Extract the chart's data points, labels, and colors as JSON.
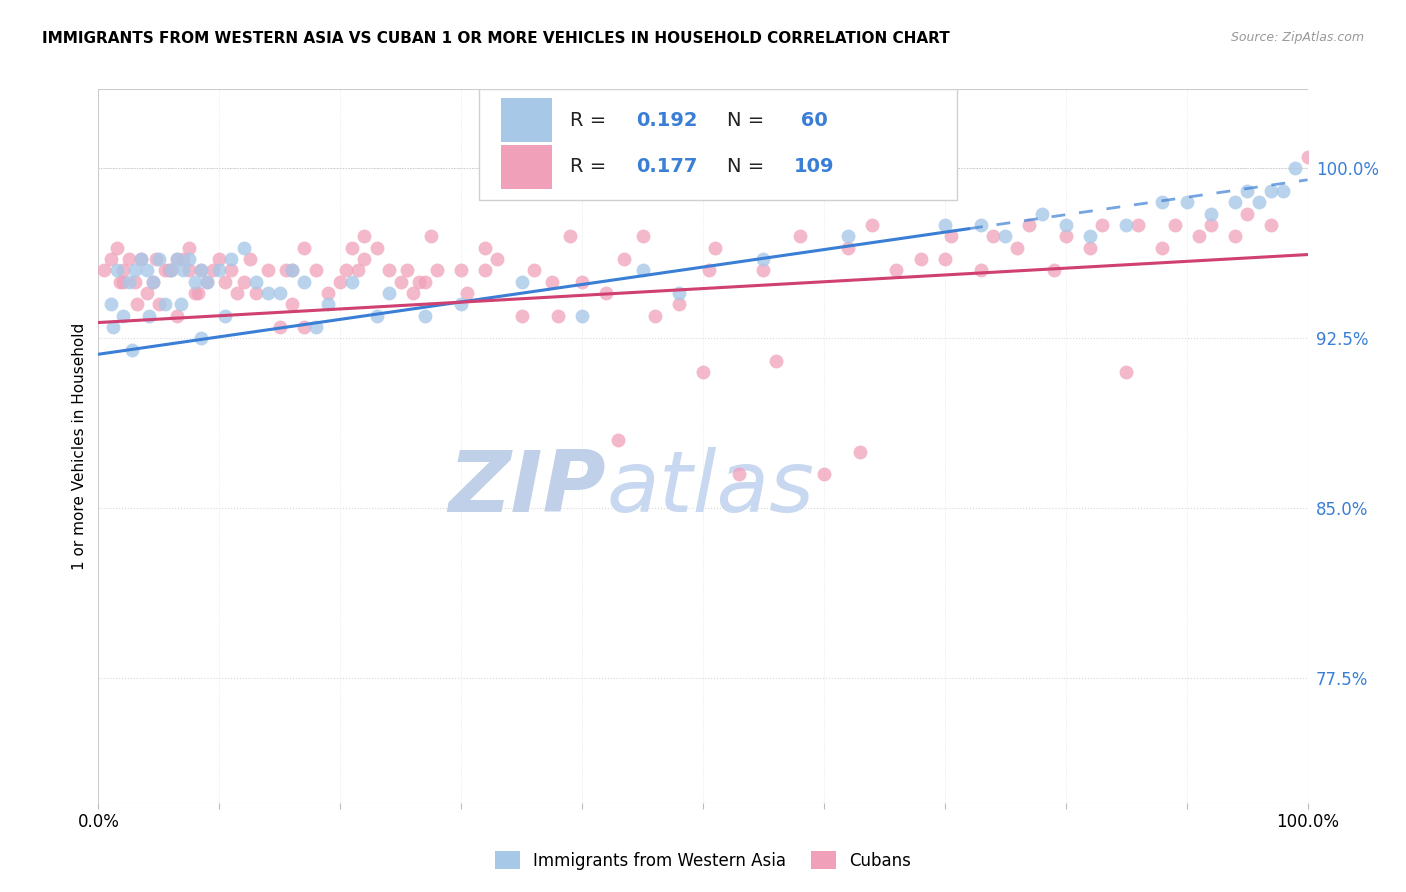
{
  "title": "IMMIGRANTS FROM WESTERN ASIA VS CUBAN 1 OR MORE VEHICLES IN HOUSEHOLD CORRELATION CHART",
  "source_text": "Source: ZipAtlas.com",
  "ylabel": "1 or more Vehicles in Household",
  "legend_label_blue": "Immigrants from Western Asia",
  "legend_label_pink": "Cubans",
  "R_blue": 0.192,
  "N_blue": 60,
  "R_pink": 0.177,
  "N_pink": 109,
  "color_blue_scatter": "#a8c8e8",
  "color_pink_scatter": "#f0a0b8",
  "color_blue_line": "#3a7fd5",
  "color_pink_line": "#d04070",
  "color_right_axis": "#3a7fd5",
  "watermark_zip_color": "#c0d0e8",
  "watermark_atlas_color": "#c8d8f0",
  "right_yticks": [
    77.5,
    85.0,
    92.5,
    100.0
  ],
  "right_yticklabels": [
    "77.5%",
    "85.0%",
    "92.5%",
    "100.0%"
  ],
  "xmin": 0.0,
  "xmax": 100.0,
  "ymin": 72.0,
  "ymax": 103.5,
  "blue_line_x0": 0.0,
  "blue_line_y0": 91.8,
  "blue_line_x1": 100.0,
  "blue_line_y1": 99.5,
  "blue_solid_end": 72.0,
  "pink_line_x0": 0.0,
  "pink_line_y0": 93.2,
  "pink_line_x1": 100.0,
  "pink_line_y1": 96.2,
  "blue_x": [
    1.0,
    1.5,
    2.0,
    2.5,
    3.0,
    3.5,
    4.0,
    4.5,
    5.0,
    5.5,
    6.0,
    6.5,
    7.0,
    7.5,
    8.0,
    8.5,
    9.0,
    10.0,
    11.0,
    12.0,
    13.0,
    15.0,
    16.0,
    17.0,
    19.0,
    21.0,
    24.0,
    27.0,
    30.0,
    35.0,
    40.0,
    48.0,
    55.0,
    62.0,
    70.0,
    73.0,
    75.0,
    78.0,
    80.0,
    82.0,
    85.0,
    88.0,
    90.0,
    92.0,
    94.0,
    95.0,
    96.0,
    97.0,
    98.0,
    99.0,
    1.2,
    2.8,
    4.2,
    6.8,
    8.5,
    10.5,
    14.0,
    18.0,
    23.0,
    45.0
  ],
  "blue_y": [
    94.0,
    95.5,
    93.5,
    95.0,
    95.5,
    96.0,
    95.5,
    95.0,
    96.0,
    94.0,
    95.5,
    96.0,
    95.5,
    96.0,
    95.0,
    95.5,
    95.0,
    95.5,
    96.0,
    96.5,
    95.0,
    94.5,
    95.5,
    95.0,
    94.0,
    95.0,
    94.5,
    93.5,
    94.0,
    95.0,
    93.5,
    94.5,
    96.0,
    97.0,
    97.5,
    97.5,
    97.0,
    98.0,
    97.5,
    97.0,
    97.5,
    98.5,
    98.5,
    98.0,
    98.5,
    99.0,
    98.5,
    99.0,
    99.0,
    100.0,
    93.0,
    92.0,
    93.5,
    94.0,
    92.5,
    93.5,
    94.5,
    93.0,
    93.5,
    95.5
  ],
  "pink_x": [
    0.5,
    1.0,
    1.5,
    2.0,
    2.5,
    3.0,
    3.5,
    4.0,
    4.5,
    5.0,
    5.5,
    6.0,
    6.5,
    7.0,
    7.5,
    8.0,
    8.5,
    9.0,
    9.5,
    10.0,
    11.0,
    12.0,
    13.0,
    14.0,
    15.0,
    16.0,
    17.0,
    18.0,
    19.0,
    20.0,
    21.0,
    22.0,
    23.0,
    24.0,
    25.0,
    26.0,
    27.0,
    28.0,
    30.0,
    32.0,
    35.0,
    38.0,
    40.0,
    43.0,
    46.0,
    50.0,
    53.0,
    56.0,
    60.0,
    63.0,
    66.0,
    70.0,
    73.0,
    76.0,
    79.0,
    82.0,
    85.0,
    88.0,
    91.0,
    94.0,
    97.0,
    100.0,
    1.8,
    3.2,
    5.8,
    8.2,
    11.5,
    15.5,
    20.5,
    25.5,
    30.5,
    36.0,
    42.0,
    48.0,
    55.0,
    62.0,
    68.0,
    74.0,
    80.0,
    86.0,
    92.0,
    4.8,
    7.5,
    12.5,
    17.0,
    22.0,
    27.5,
    33.0,
    39.0,
    45.0,
    51.0,
    58.0,
    64.0,
    70.5,
    77.0,
    83.0,
    89.0,
    95.0,
    2.0,
    6.5,
    10.5,
    16.0,
    21.5,
    26.5,
    32.0,
    37.5,
    43.5,
    50.5
  ],
  "pink_y": [
    95.5,
    96.0,
    96.5,
    95.5,
    96.0,
    95.0,
    96.0,
    94.5,
    95.0,
    94.0,
    95.5,
    95.5,
    96.0,
    96.0,
    95.5,
    94.5,
    95.5,
    95.0,
    95.5,
    96.0,
    95.5,
    95.0,
    94.5,
    95.5,
    93.0,
    95.5,
    93.0,
    95.5,
    94.5,
    95.0,
    96.5,
    96.0,
    96.5,
    95.5,
    95.0,
    94.5,
    95.0,
    95.5,
    95.5,
    96.5,
    93.5,
    93.5,
    95.0,
    88.0,
    93.5,
    91.0,
    86.5,
    91.5,
    86.5,
    87.5,
    95.5,
    96.0,
    95.5,
    96.5,
    95.5,
    96.5,
    91.0,
    96.5,
    97.0,
    97.0,
    97.5,
    100.5,
    95.0,
    94.0,
    95.5,
    94.5,
    94.5,
    95.5,
    95.5,
    95.5,
    94.5,
    95.5,
    94.5,
    94.0,
    95.5,
    96.5,
    96.0,
    97.0,
    97.0,
    97.5,
    97.5,
    96.0,
    96.5,
    96.0,
    96.5,
    97.0,
    97.0,
    96.0,
    97.0,
    97.0,
    96.5,
    97.0,
    97.5,
    97.0,
    97.5,
    97.5,
    97.5,
    98.0,
    95.0,
    93.5,
    95.0,
    94.0,
    95.5,
    95.0,
    95.5,
    95.0,
    96.0,
    95.5
  ]
}
